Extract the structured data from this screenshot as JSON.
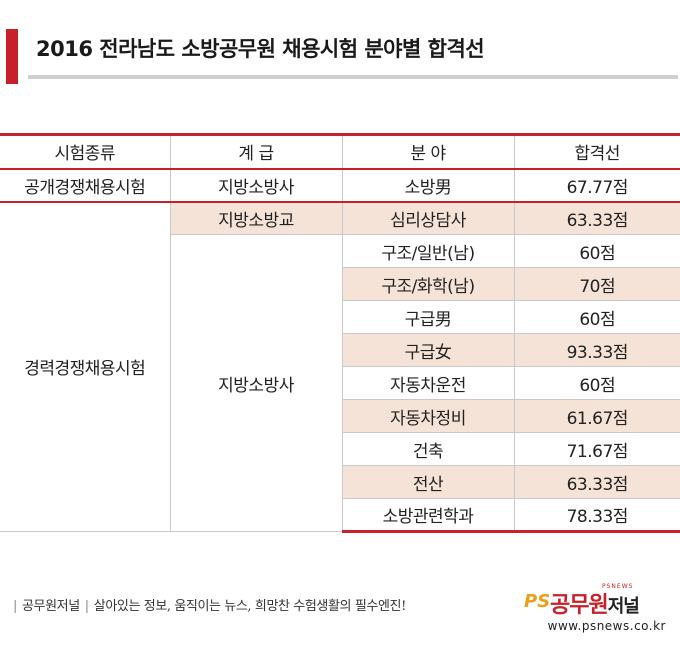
{
  "title": "2016 전라남도 소방공무원 채용시험 분야별 합격선",
  "table": {
    "headers": [
      "시험종류",
      "계 급",
      "분 야",
      "합격선"
    ],
    "public": {
      "type": "공개경쟁채용시험",
      "rank": "지방소방사",
      "field": "소방男",
      "score": "67.77점"
    },
    "career": {
      "type": "경력경쟁채용시험",
      "rank_gyo": "지방소방교",
      "rank_sa": "지방소방사",
      "rows": [
        {
          "field": "심리상담사",
          "score": "63.33점"
        },
        {
          "field": "구조/일반(남)",
          "score": "60점"
        },
        {
          "field": "구조/화학(남)",
          "score": "70점"
        },
        {
          "field": "구급男",
          "score": "60점"
        },
        {
          "field": "구급女",
          "score": "93.33점"
        },
        {
          "field": "자동차운전",
          "score": "60점"
        },
        {
          "field": "자동차정비",
          "score": "61.67점"
        },
        {
          "field": "건축",
          "score": "71.67점"
        },
        {
          "field": "전산",
          "score": "63.33점"
        },
        {
          "field": "소방관련학과",
          "score": "78.33점"
        }
      ]
    }
  },
  "footer": {
    "brand": "공무원저널",
    "slogan": "살아있는 정보, 움직이는 뉴스, 희망찬 수험생활의 필수엔진!",
    "logo_ps": "PS",
    "logo_main": "공무원",
    "logo_small": "저널",
    "logo_tag": "PSNEWS",
    "url": "www.psnews.co.kr"
  },
  "colors": {
    "accent": "#c8202a",
    "shade": "#f5e3d7",
    "rule": "#cfcfcf"
  }
}
